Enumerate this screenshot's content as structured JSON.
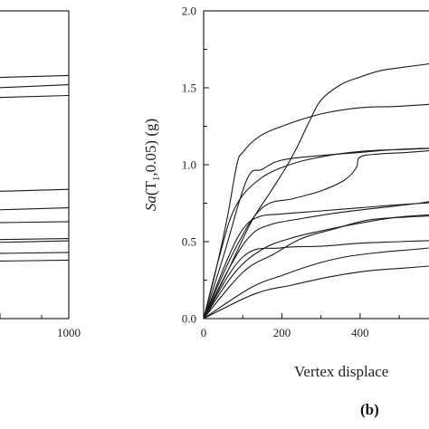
{
  "chart_data": [
    {
      "panel": "a",
      "type": "line",
      "xlim": [
        0,
        1000
      ],
      "ylim": [
        0,
        2.0
      ],
      "x_ticks": [
        "1000"
      ],
      "series": [
        {
          "x": [
            0,
            1000
          ],
          "y": [
            1.56,
            1.58
          ]
        },
        {
          "x": [
            0,
            1000
          ],
          "y": [
            1.49,
            1.52
          ]
        },
        {
          "x": [
            0,
            1000
          ],
          "y": [
            1.43,
            1.45
          ]
        },
        {
          "x": [
            0,
            1000
          ],
          "y": [
            0.82,
            0.84
          ]
        },
        {
          "x": [
            0,
            1000
          ],
          "y": [
            0.7,
            0.72
          ]
        },
        {
          "x": [
            0,
            1000
          ],
          "y": [
            0.62,
            0.63
          ]
        },
        {
          "x": [
            0,
            1000
          ],
          "y": [
            0.51,
            0.52
          ]
        },
        {
          "x": [
            0,
            1000
          ],
          "y": [
            0.49,
            0.505
          ]
        },
        {
          "x": [
            0,
            1000
          ],
          "y": [
            0.42,
            0.43
          ]
        },
        {
          "x": [
            0,
            1000
          ],
          "y": [
            0.37,
            0.38
          ]
        }
      ]
    },
    {
      "panel": "b",
      "type": "line",
      "xlim": [
        0,
        620
      ],
      "ylim": [
        0,
        2.0
      ],
      "x_ticks": [
        "0",
        "200",
        "400"
      ],
      "y_ticks": [
        "0.0",
        "0.5",
        "1.0",
        "1.5",
        "2.0"
      ],
      "ylabel": "Sa(T1,0.05) (g)",
      "xlabel": "Vertex displace",
      "label": "(b)",
      "series": [
        {
          "x": [
            0,
            30,
            60,
            85,
            100,
            140,
            200,
            300,
            400,
            500,
            620
          ],
          "y": [
            0,
            0.3,
            0.65,
            1.0,
            1.08,
            1.18,
            1.25,
            1.33,
            1.37,
            1.38,
            1.4
          ]
        },
        {
          "x": [
            0,
            60,
            120,
            170,
            210,
            240,
            270,
            300,
            350,
            400,
            450,
            500,
            560,
            620
          ],
          "y": [
            0,
            0.3,
            0.62,
            0.82,
            0.98,
            1.12,
            1.28,
            1.42,
            1.52,
            1.57,
            1.61,
            1.63,
            1.65,
            1.67
          ]
        },
        {
          "x": [
            0,
            50,
            110,
            150,
            200,
            300,
            400,
            500,
            620
          ],
          "y": [
            0,
            0.4,
            0.9,
            0.97,
            1.03,
            1.06,
            1.08,
            1.1,
            1.11
          ]
        },
        {
          "x": [
            0,
            80,
            150,
            230,
            300,
            360,
            390,
            400,
            450,
            520,
            620
          ],
          "y": [
            0,
            0.45,
            0.72,
            0.78,
            0.83,
            0.9,
            0.98,
            1.05,
            1.07,
            1.08,
            1.1
          ]
        },
        {
          "x": [
            0,
            60,
            100,
            140,
            200,
            300,
            400,
            500,
            620
          ],
          "y": [
            0,
            0.38,
            0.58,
            0.66,
            0.68,
            0.7,
            0.72,
            0.74,
            0.76
          ]
        },
        {
          "x": [
            0,
            70,
            120,
            170,
            250,
            350,
            450,
            550,
            620
          ],
          "y": [
            0,
            0.35,
            0.54,
            0.61,
            0.65,
            0.69,
            0.72,
            0.75,
            0.78
          ]
        },
        {
          "x": [
            0,
            80,
            150,
            220,
            300,
            400,
            500,
            620
          ],
          "y": [
            0,
            0.3,
            0.45,
            0.52,
            0.57,
            0.62,
            0.66,
            0.68
          ]
        },
        {
          "x": [
            0,
            100,
            180,
            250,
            330,
            420,
            520,
            620
          ],
          "y": [
            0,
            0.3,
            0.42,
            0.52,
            0.58,
            0.64,
            0.66,
            0.67
          ]
        },
        {
          "x": [
            0,
            100,
            200,
            300,
            400,
            500,
            620
          ],
          "y": [
            0,
            0.4,
            0.46,
            0.47,
            0.49,
            0.5,
            0.51
          ]
        },
        {
          "x": [
            0,
            120,
            200,
            280,
            360,
            450,
            540,
            620
          ],
          "y": [
            0,
            0.2,
            0.28,
            0.35,
            0.4,
            0.43,
            0.45,
            0.47
          ]
        },
        {
          "x": [
            0,
            130,
            230,
            320,
            420,
            520,
            620
          ],
          "y": [
            0,
            0.16,
            0.22,
            0.27,
            0.31,
            0.33,
            0.35
          ]
        },
        {
          "x": [
            0,
            40,
            80,
            140,
            220,
            320,
            420,
            520,
            620
          ],
          "y": [
            0,
            0.4,
            0.72,
            0.9,
            1.0,
            1.06,
            1.09,
            1.1,
            1.11
          ]
        }
      ]
    }
  ]
}
